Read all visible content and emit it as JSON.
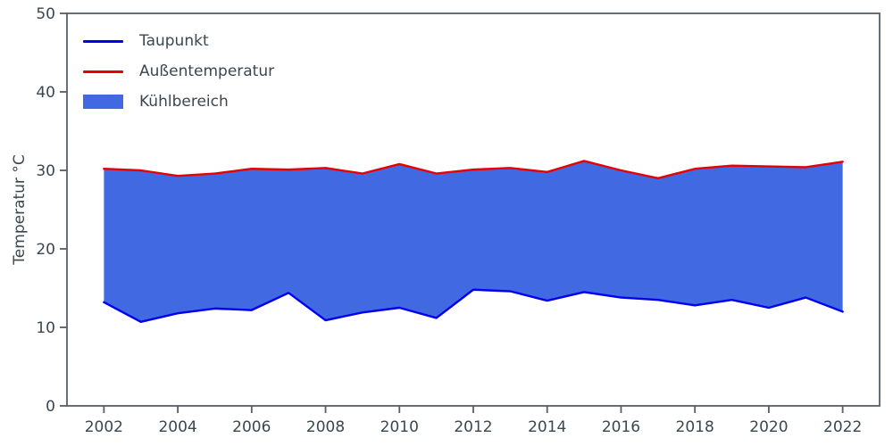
{
  "chart_data": {
    "type": "area",
    "title": "",
    "xlabel": "",
    "ylabel": "Temperatur °C",
    "xlim": [
      2001,
      2023
    ],
    "ylim": [
      0,
      50
    ],
    "xticks": [
      2002,
      2004,
      2006,
      2008,
      2010,
      2012,
      2014,
      2016,
      2018,
      2020,
      2022
    ],
    "yticks": [
      0,
      10,
      20,
      30,
      40,
      50
    ],
    "grid": false,
    "legend_position": "upper-left",
    "x": [
      2002,
      2003,
      2004,
      2005,
      2006,
      2007,
      2008,
      2009,
      2010,
      2011,
      2012,
      2013,
      2014,
      2015,
      2016,
      2017,
      2018,
      2019,
      2020,
      2021,
      2022
    ],
    "series": [
      {
        "name": "Taupunkt",
        "color": "#0000ee",
        "values": [
          13.2,
          10.7,
          11.8,
          12.4,
          12.2,
          14.4,
          10.9,
          11.9,
          12.5,
          11.2,
          14.8,
          14.6,
          13.4,
          14.5,
          13.8,
          13.5,
          12.8,
          13.5,
          12.5,
          13.8,
          12.0
        ]
      },
      {
        "name": "Außentemperatur",
        "color": "#e60000",
        "values": [
          30.2,
          30.0,
          29.3,
          29.6,
          30.2,
          30.1,
          30.3,
          29.6,
          30.8,
          29.6,
          30.1,
          30.3,
          29.8,
          31.2,
          30.0,
          29.0,
          30.2,
          30.6,
          30.5,
          30.4,
          31.1
        ]
      }
    ],
    "area": {
      "name": "Kühlbereich",
      "color": "#4169e1",
      "between": [
        "Taupunkt",
        "Außentemperatur"
      ]
    }
  },
  "style": {
    "spine_color": "#555f6a",
    "tick_color": "#555f6a",
    "text_color": "#3a4750",
    "background": "#ffffff"
  }
}
